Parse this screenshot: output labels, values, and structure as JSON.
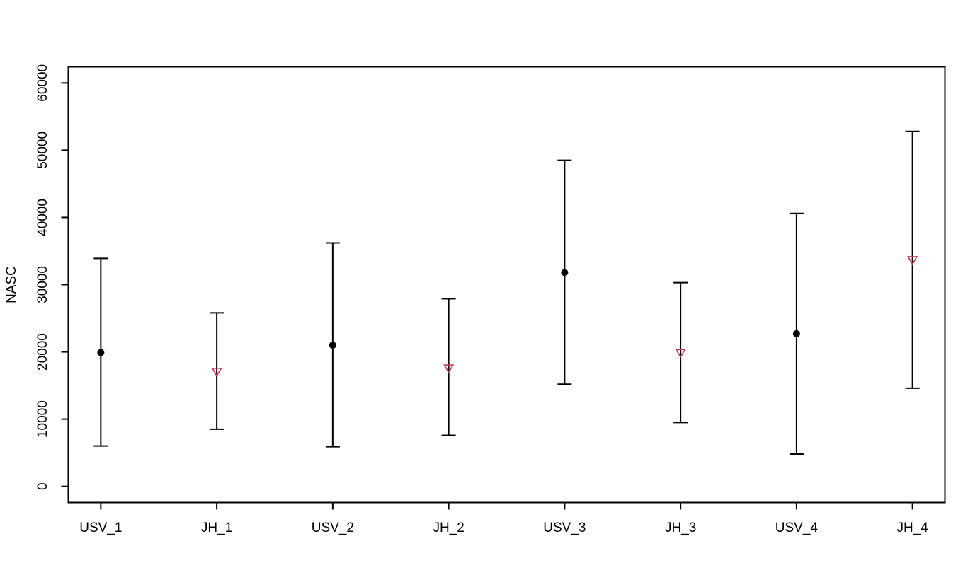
{
  "chart_data": {
    "type": "scatter",
    "subtype": "point-estimates-with-error-bars",
    "title": "",
    "xlabel": "",
    "ylabel": "NASC",
    "ylim": [
      0,
      60000
    ],
    "yticks": [
      0,
      10000,
      20000,
      30000,
      40000,
      50000,
      60000
    ],
    "ytick_labels": [
      "0",
      "10000",
      "20000",
      "30000",
      "40000",
      "50000",
      "60000"
    ],
    "categories": [
      "USV_1",
      "JH_1",
      "USV_2",
      "JH_2",
      "USV_3",
      "JH_3",
      "USV_4",
      "JH_4"
    ],
    "grid": false,
    "legend": "none",
    "series": [
      {
        "name": "USV",
        "marker": "filled-circle",
        "color": "#000000"
      },
      {
        "name": "JH",
        "marker": "open-triangle-down",
        "color": "#c23b52"
      }
    ],
    "points": [
      {
        "category": "USV_1",
        "series": "USV",
        "value": 19900,
        "lower": 6000,
        "upper": 33900
      },
      {
        "category": "JH_1",
        "series": "JH",
        "value": 17100,
        "lower": 8500,
        "upper": 25800
      },
      {
        "category": "USV_2",
        "series": "USV",
        "value": 21000,
        "lower": 5900,
        "upper": 36200
      },
      {
        "category": "JH_2",
        "series": "JH",
        "value": 17600,
        "lower": 7600,
        "upper": 27900
      },
      {
        "category": "USV_3",
        "series": "USV",
        "value": 31800,
        "lower": 15200,
        "upper": 48500
      },
      {
        "category": "JH_3",
        "series": "JH",
        "value": 19900,
        "lower": 9500,
        "upper": 30300
      },
      {
        "category": "USV_4",
        "series": "USV",
        "value": 22700,
        "lower": 4800,
        "upper": 40600
      },
      {
        "category": "JH_4",
        "series": "JH",
        "value": 33700,
        "lower": 14600,
        "upper": 52800
      }
    ],
    "colors": {
      "axis": "#000000",
      "error_bar": "#000000",
      "background": "#ffffff",
      "text": "#000000"
    }
  }
}
